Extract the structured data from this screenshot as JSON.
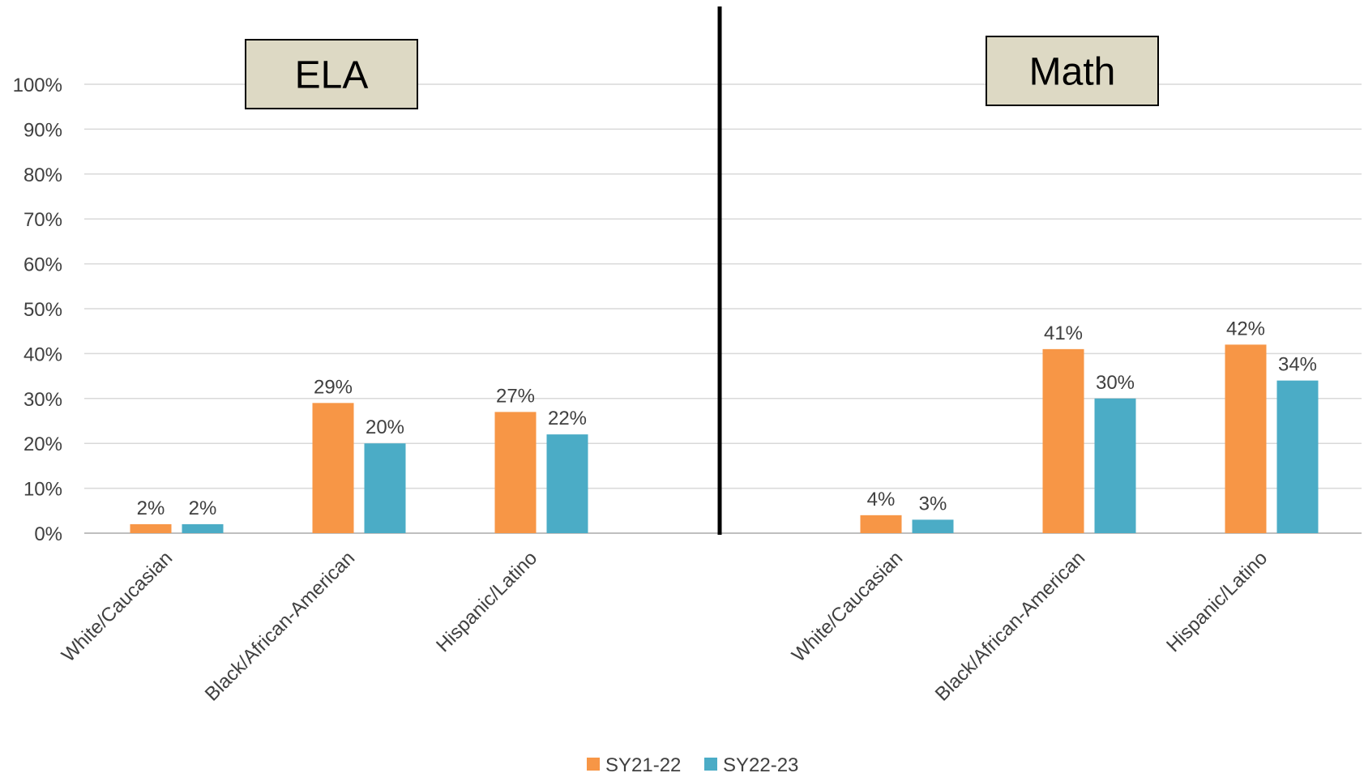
{
  "chart_data": {
    "type": "bar",
    "yticks": [
      "0%",
      "10%",
      "20%",
      "30%",
      "40%",
      "50%",
      "60%",
      "70%",
      "80%",
      "90%",
      "100%"
    ],
    "ylim": [
      0,
      100
    ],
    "grid": true,
    "legend_position": "bottom",
    "series": [
      {
        "name": "SY21-22",
        "color": "#F79646"
      },
      {
        "name": "SY22-23",
        "color": "#4BACC6"
      }
    ],
    "panels": [
      {
        "title": "ELA",
        "categories": [
          "White/Caucasian",
          "Black/African-American",
          "Hispanic/Latino"
        ],
        "values": [
          [
            2,
            29,
            27
          ],
          [
            2,
            20,
            22
          ]
        ],
        "labels": [
          [
            "2%",
            "29%",
            "27%"
          ],
          [
            "2%",
            "20%",
            "22%"
          ]
        ]
      },
      {
        "title": "Math",
        "categories": [
          "White/Caucasian",
          "Black/African-American",
          "Hispanic/Latino"
        ],
        "values": [
          [
            4,
            41,
            42
          ],
          [
            3,
            30,
            34
          ]
        ],
        "labels": [
          [
            "4%",
            "41%",
            "42%"
          ],
          [
            "3%",
            "30%",
            "34%"
          ]
        ]
      }
    ]
  }
}
